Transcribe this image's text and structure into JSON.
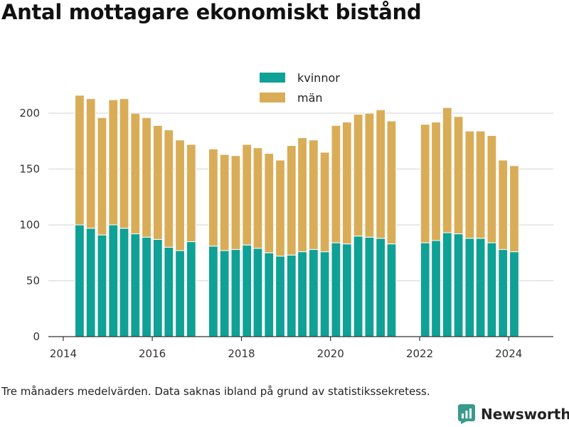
{
  "title": "Antal mottagare ekonomiskt bistånd",
  "note": "Tre månaders medelvärden. Data saknas ibland på grund av statistikssekretess.",
  "brand": {
    "name": "Newsworthy",
    "color": "#3a9a8c",
    "icon": "newsworthy-logo-icon"
  },
  "chart_data": {
    "type": "bar",
    "stacked": true,
    "xlim": [
      "2013-09-01",
      "2025-01-01"
    ],
    "ylim": [
      0,
      225
    ],
    "xticks": [
      {
        "date": "2014-01-01",
        "label": "2014"
      },
      {
        "date": "2016-01-01",
        "label": "2016"
      },
      {
        "date": "2018-01-01",
        "label": "2018"
      },
      {
        "date": "2020-01-01",
        "label": "2020"
      },
      {
        "date": "2022-01-01",
        "label": "2022"
      },
      {
        "date": "2024-01-01",
        "label": "2024"
      }
    ],
    "yticks": [
      0,
      50,
      100,
      150,
      200
    ],
    "grid": true,
    "legend_position": "top-center",
    "x": [
      "2014-05",
      "2014-08",
      "2014-11",
      "2015-02",
      "2015-05",
      "2015-08",
      "2015-11",
      "2016-02",
      "2016-05",
      "2016-08",
      "2016-11",
      "2017-05",
      "2017-08",
      "2017-11",
      "2018-02",
      "2018-05",
      "2018-08",
      "2018-11",
      "2019-02",
      "2019-05",
      "2019-08",
      "2019-11",
      "2020-02",
      "2020-05",
      "2020-08",
      "2020-11",
      "2021-02",
      "2021-05",
      "2022-02",
      "2022-05",
      "2022-08",
      "2022-11",
      "2023-02",
      "2023-05",
      "2023-08",
      "2023-11",
      "2024-02"
    ],
    "series": [
      {
        "name": "kvinnor",
        "color": "#0fa195",
        "values": [
          100,
          97,
          91,
          100,
          97,
          92,
          89,
          87,
          80,
          77,
          85,
          81,
          77,
          78,
          82,
          79,
          75,
          72,
          73,
          76,
          78,
          76,
          84,
          83,
          90,
          89,
          88,
          83,
          84,
          86,
          93,
          92,
          88,
          88,
          84,
          78,
          76
        ]
      },
      {
        "name": "män",
        "color": "#d9ad57",
        "values": [
          116,
          116,
          105,
          112,
          116,
          108,
          107,
          102,
          105,
          99,
          87,
          87,
          86,
          84,
          90,
          90,
          89,
          86,
          98,
          102,
          98,
          89,
          105,
          109,
          109,
          111,
          115,
          110,
          106,
          106,
          112,
          105,
          96,
          96,
          96,
          80,
          77
        ]
      }
    ]
  }
}
